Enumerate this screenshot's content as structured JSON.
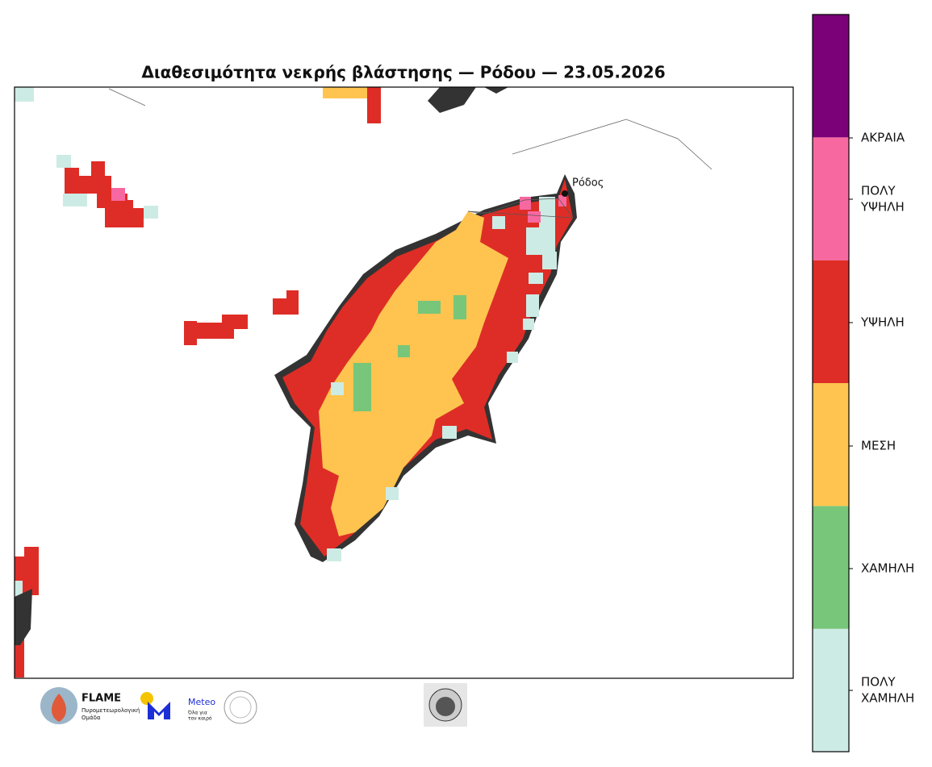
{
  "title": "Διαθεσιμότητα νεκρής βλάστησης — Ρόδου — 23.05.2026",
  "map": {
    "place_label": "Ρόδος"
  },
  "legend": {
    "classes": [
      {
        "label": [
          "ΠΟΛΥ",
          "ΧΑΜΗΛΗ"
        ],
        "color": "#cdebe5"
      },
      {
        "label": [
          "ΧΑΜΗΛΗ"
        ],
        "color": "#78c679"
      },
      {
        "label": [
          "ΜΕΣΗ"
        ],
        "color": "#fec44f"
      },
      {
        "label": [
          "ΥΨΗΛΗ"
        ],
        "color": "#de2d26"
      },
      {
        "label": [
          "ΠΟΛΥ",
          "ΥΨΗΛΗ"
        ],
        "color": "#f768a1"
      },
      {
        "label": [
          "ΑΚΡΑΙΑ"
        ],
        "color": "#7a0177"
      }
    ]
  },
  "logos": {
    "flame": {
      "name": "FLAME",
      "subtitle": [
        "Πυρομετεωρολογική",
        "Ομάδα"
      ]
    },
    "meteo": {
      "name": "Meteo",
      "subtitle": [
        "Όλα για",
        "τον καιρό"
      ]
    }
  }
}
